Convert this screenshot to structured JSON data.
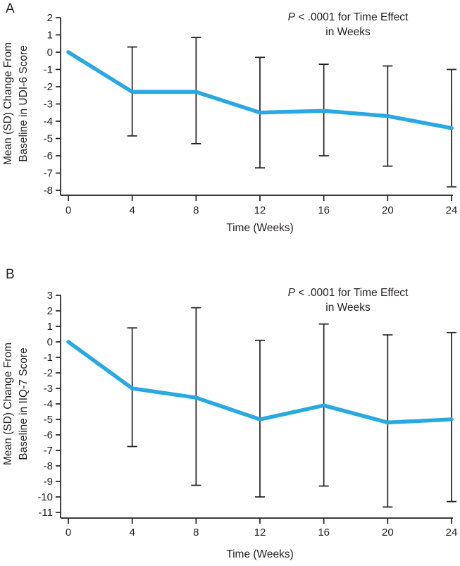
{
  "figure": {
    "description_visible_text_only": true
  },
  "chart_data": [
    {
      "type": "line",
      "panel_letter": "A",
      "annotation": {
        "p": "P",
        "rest": " < .0001 for Time Effect",
        "line2": "in Weeks"
      },
      "xlabel": "Time (Weeks)",
      "ylabel": "Mean (SD) Change From Baseline in UDI-6 Score",
      "ylabel_line1": "Mean (SD) Change From",
      "ylabel_line2": "Baseline in UDI-6 Score",
      "x_weeks": [
        0,
        4,
        8,
        12,
        16,
        20,
        24
      ],
      "mean": [
        0,
        -2.3,
        -2.3,
        -3.5,
        -3.4,
        -3.7,
        -4.4
      ],
      "err_high": [
        null,
        0.3,
        0.85,
        -0.3,
        -0.7,
        -0.8,
        -1.0
      ],
      "err_low": [
        null,
        -4.85,
        -5.3,
        -6.7,
        -6.0,
        -6.6,
        -7.8
      ],
      "xlim": [
        0,
        24
      ],
      "ylim": [
        -8,
        2
      ],
      "xticks": [
        0,
        4,
        8,
        12,
        16,
        20,
        24
      ],
      "yticks": [
        2,
        1,
        0,
        -1,
        -2,
        -3,
        -4,
        -5,
        -6,
        -7,
        -8
      ],
      "grid": false,
      "legend": null,
      "line_color": "#29A8E1",
      "axis_color": "#231F20"
    },
    {
      "type": "line",
      "panel_letter": "B",
      "annotation": {
        "p": "P",
        "rest": " < .0001 for Time Effect",
        "line2": "in Weeks"
      },
      "xlabel": "Time (Weeks)",
      "ylabel": "Mean (SD) Change From Baseline in IIQ-7 Score",
      "ylabel_line1": "Mean (SD) Change From",
      "ylabel_line2": "Baseline in IIQ-7 Score",
      "x_weeks": [
        0,
        4,
        8,
        12,
        16,
        20,
        24
      ],
      "mean": [
        0,
        -3.0,
        -3.6,
        -5.0,
        -4.1,
        -5.2,
        -5.0
      ],
      "err_high": [
        null,
        0.9,
        2.2,
        0.1,
        1.15,
        0.45,
        0.6
      ],
      "err_low": [
        null,
        -6.75,
        -9.25,
        -10.0,
        -9.3,
        -10.65,
        -10.3
      ],
      "xlim": [
        0,
        24
      ],
      "ylim": [
        -11,
        3
      ],
      "xticks": [
        0,
        4,
        8,
        12,
        16,
        20,
        24
      ],
      "yticks": [
        3,
        2,
        1,
        0,
        -1,
        -2,
        -3,
        -4,
        -5,
        -6,
        -7,
        -8,
        -9,
        -10,
        -11
      ],
      "grid": false,
      "legend": null,
      "line_color": "#29A8E1",
      "axis_color": "#231F20"
    }
  ]
}
